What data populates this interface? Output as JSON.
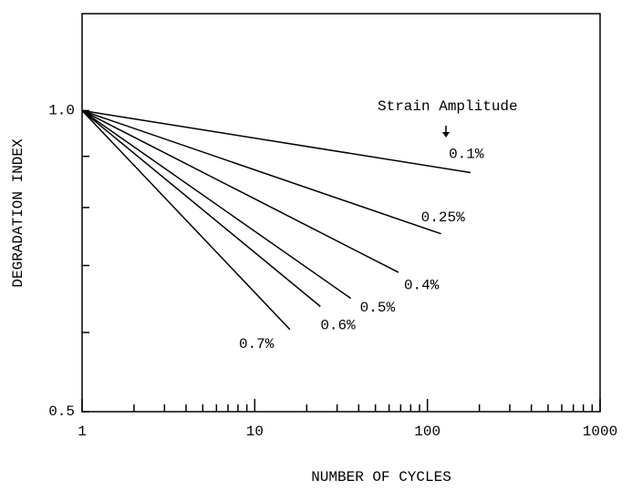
{
  "chart_data": {
    "type": "line",
    "xlabel": "NUMBER OF CYCLES",
    "ylabel": "DEGRADATION INDEX",
    "annotation": "Strain Amplitude",
    "log_x": true,
    "log_y": true,
    "xlim": [
      1,
      1000
    ],
    "ylim": [
      0.5,
      1.25
    ],
    "xticks": [
      1,
      10,
      100,
      1000
    ],
    "xminor": [
      2,
      3,
      4,
      5,
      6,
      7,
      8,
      9,
      20,
      30,
      40,
      50,
      60,
      70,
      80,
      90,
      200,
      300,
      400,
      500,
      600,
      700,
      800,
      900
    ],
    "yticks": [
      0.5,
      {
        "value": 1,
        "label": "1.0"
      }
    ],
    "yminor": [
      0.6,
      0.7,
      0.8,
      0.9
    ],
    "color": "#000000",
    "series": [
      {
        "name": "0.1%",
        "x": [
          1,
          178
        ],
        "values": [
          1,
          0.867
        ]
      },
      {
        "name": "0.25%",
        "x": [
          1,
          120
        ],
        "values": [
          1,
          0.753
        ]
      },
      {
        "name": "0.4%",
        "x": [
          1,
          68
        ],
        "values": [
          1,
          0.689
        ]
      },
      {
        "name": "0.5%",
        "x": [
          1,
          36
        ],
        "values": [
          1,
          0.649
        ]
      },
      {
        "name": "0.6%",
        "x": [
          1,
          24
        ],
        "values": [
          1,
          0.637
        ]
      },
      {
        "name": "0.7%",
        "x": [
          1,
          16
        ],
        "values": [
          1,
          0.604
        ]
      }
    ]
  }
}
